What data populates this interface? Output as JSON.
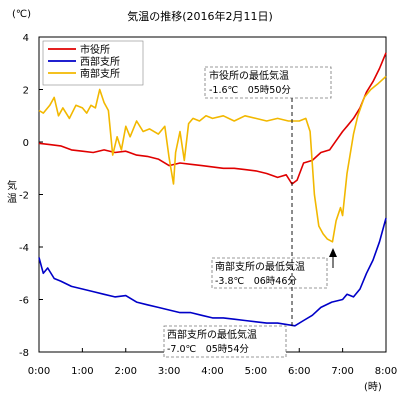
{
  "chart_data": {
    "type": "line",
    "title": "気温の推移(2016年2月11日)",
    "unit_label": "(℃)",
    "ylabel": "気温",
    "x_unit_label": "(時)",
    "x_ticks": [
      "0:00",
      "1:00",
      "2:00",
      "3:00",
      "4:00",
      "5:00",
      "6:00",
      "7:00",
      "8:00"
    ],
    "y_ticks": [
      4,
      2,
      0,
      -2,
      -4,
      -6,
      -8
    ],
    "xlim": [
      0,
      8
    ],
    "ylim": [
      -8,
      4
    ],
    "grid": false,
    "legend_position": "top-left",
    "series": [
      {
        "name": "市役所",
        "color": "#e00000",
        "points": [
          [
            0.0,
            -0.05
          ],
          [
            0.25,
            -0.1
          ],
          [
            0.5,
            -0.15
          ],
          [
            0.75,
            -0.3
          ],
          [
            1.0,
            -0.35
          ],
          [
            1.25,
            -0.4
          ],
          [
            1.5,
            -0.3
          ],
          [
            1.75,
            -0.4
          ],
          [
            2.0,
            -0.35
          ],
          [
            2.25,
            -0.5
          ],
          [
            2.5,
            -0.55
          ],
          [
            2.75,
            -0.65
          ],
          [
            3.0,
            -0.9
          ],
          [
            3.25,
            -0.8
          ],
          [
            3.5,
            -0.85
          ],
          [
            3.75,
            -0.9
          ],
          [
            4.0,
            -0.95
          ],
          [
            4.25,
            -1.0
          ],
          [
            4.5,
            -1.0
          ],
          [
            4.75,
            -1.05
          ],
          [
            5.0,
            -1.1
          ],
          [
            5.25,
            -1.2
          ],
          [
            5.5,
            -1.35
          ],
          [
            5.6,
            -1.3
          ],
          [
            5.7,
            -1.25
          ],
          [
            5.833,
            -1.6
          ],
          [
            5.95,
            -1.45
          ],
          [
            6.1,
            -0.8
          ],
          [
            6.3,
            -0.7
          ],
          [
            6.5,
            -0.4
          ],
          [
            6.7,
            -0.3
          ],
          [
            6.85,
            0.05
          ],
          [
            7.0,
            0.4
          ],
          [
            7.1,
            0.6
          ],
          [
            7.25,
            0.9
          ],
          [
            7.4,
            1.3
          ],
          [
            7.55,
            1.9
          ],
          [
            7.7,
            2.3
          ],
          [
            7.85,
            2.8
          ],
          [
            8.0,
            3.4
          ]
        ]
      },
      {
        "name": "西部支所",
        "color": "#0000c8",
        "points": [
          [
            0.0,
            -4.4
          ],
          [
            0.1,
            -5.0
          ],
          [
            0.2,
            -4.8
          ],
          [
            0.35,
            -5.2
          ],
          [
            0.5,
            -5.3
          ],
          [
            0.75,
            -5.5
          ],
          [
            1.0,
            -5.6
          ],
          [
            1.25,
            -5.7
          ],
          [
            1.5,
            -5.8
          ],
          [
            1.75,
            -5.9
          ],
          [
            2.0,
            -5.85
          ],
          [
            2.25,
            -6.1
          ],
          [
            2.5,
            -6.2
          ],
          [
            2.75,
            -6.3
          ],
          [
            3.0,
            -6.4
          ],
          [
            3.25,
            -6.5
          ],
          [
            3.5,
            -6.5
          ],
          [
            3.75,
            -6.6
          ],
          [
            4.0,
            -6.7
          ],
          [
            4.25,
            -6.7
          ],
          [
            4.5,
            -6.75
          ],
          [
            4.75,
            -6.8
          ],
          [
            5.0,
            -6.85
          ],
          [
            5.25,
            -6.9
          ],
          [
            5.5,
            -6.9
          ],
          [
            5.7,
            -6.95
          ],
          [
            5.9,
            -7.0
          ],
          [
            6.1,
            -6.8
          ],
          [
            6.3,
            -6.6
          ],
          [
            6.5,
            -6.3
          ],
          [
            6.75,
            -6.1
          ],
          [
            7.0,
            -6.0
          ],
          [
            7.1,
            -5.8
          ],
          [
            7.25,
            -5.9
          ],
          [
            7.4,
            -5.6
          ],
          [
            7.55,
            -5.0
          ],
          [
            7.7,
            -4.5
          ],
          [
            7.85,
            -3.8
          ],
          [
            8.0,
            -2.9
          ]
        ]
      },
      {
        "name": "南部支所",
        "color": "#f2b800",
        "points": [
          [
            0.0,
            1.2
          ],
          [
            0.1,
            1.1
          ],
          [
            0.25,
            1.4
          ],
          [
            0.35,
            1.7
          ],
          [
            0.45,
            1.0
          ],
          [
            0.55,
            1.3
          ],
          [
            0.7,
            0.9
          ],
          [
            0.85,
            1.4
          ],
          [
            1.0,
            1.3
          ],
          [
            1.1,
            1.1
          ],
          [
            1.2,
            1.4
          ],
          [
            1.3,
            1.3
          ],
          [
            1.4,
            2.0
          ],
          [
            1.5,
            1.5
          ],
          [
            1.6,
            1.2
          ],
          [
            1.7,
            -0.5
          ],
          [
            1.8,
            0.2
          ],
          [
            1.9,
            -0.3
          ],
          [
            2.0,
            0.6
          ],
          [
            2.1,
            0.2
          ],
          [
            2.25,
            0.8
          ],
          [
            2.4,
            0.4
          ],
          [
            2.55,
            0.5
          ],
          [
            2.75,
            0.3
          ],
          [
            2.9,
            0.6
          ],
          [
            3.0,
            -0.6
          ],
          [
            3.1,
            -1.6
          ],
          [
            3.15,
            -0.4
          ],
          [
            3.25,
            0.4
          ],
          [
            3.35,
            -0.7
          ],
          [
            3.45,
            0.7
          ],
          [
            3.55,
            0.9
          ],
          [
            3.7,
            0.8
          ],
          [
            3.85,
            1.0
          ],
          [
            4.0,
            0.9
          ],
          [
            4.25,
            1.0
          ],
          [
            4.5,
            0.8
          ],
          [
            4.75,
            1.0
          ],
          [
            5.0,
            0.9
          ],
          [
            5.25,
            0.8
          ],
          [
            5.5,
            0.9
          ],
          [
            5.75,
            0.8
          ],
          [
            6.0,
            0.8
          ],
          [
            6.15,
            0.9
          ],
          [
            6.25,
            0.4
          ],
          [
            6.35,
            -2.0
          ],
          [
            6.45,
            -3.2
          ],
          [
            6.55,
            -3.5
          ],
          [
            6.65,
            -3.7
          ],
          [
            6.767,
            -3.8
          ],
          [
            6.85,
            -3.0
          ],
          [
            6.95,
            -2.5
          ],
          [
            7.0,
            -2.8
          ],
          [
            7.1,
            -1.2
          ],
          [
            7.25,
            0.3
          ],
          [
            7.35,
            1.0
          ],
          [
            7.5,
            1.7
          ],
          [
            7.65,
            2.0
          ],
          [
            7.8,
            2.2
          ],
          [
            8.0,
            2.5
          ]
        ]
      }
    ],
    "annotations": [
      {
        "lines": [
          "市役所の最低気温",
          "-1.6℃　05時50分"
        ]
      },
      {
        "lines": [
          "南部支所の最低気温",
          "-3.8℃　06時46分"
        ]
      },
      {
        "lines": [
          "西部支所の最低気温",
          "-7.0℃　05時54分"
        ]
      }
    ]
  }
}
